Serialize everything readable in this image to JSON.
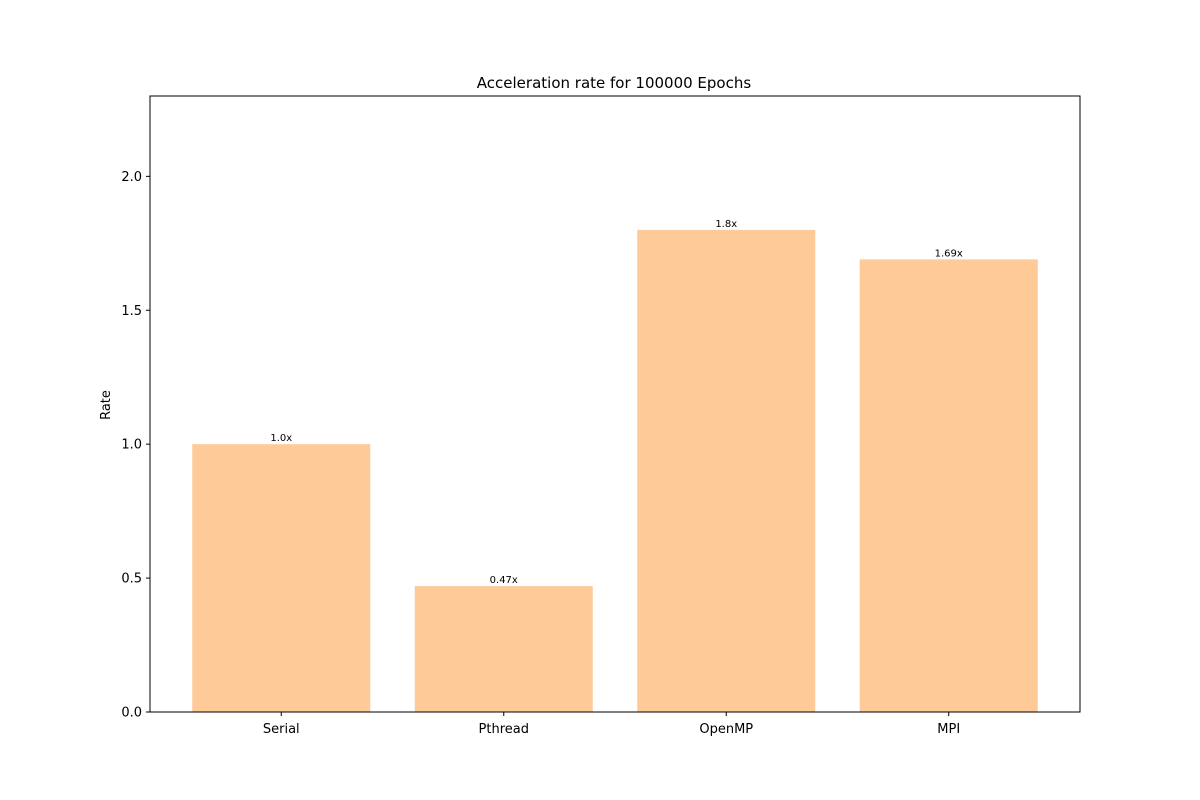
{
  "chart_data": {
    "type": "bar",
    "title": "Acceleration rate for 100000 Epochs",
    "xlabel": "",
    "ylabel": "Rate",
    "categories": [
      "Serial",
      "Pthread",
      "OpenMP",
      "MPI"
    ],
    "values": [
      1.0,
      0.47,
      1.8,
      1.69
    ],
    "data_labels": [
      "1.0x",
      "0.47x",
      "1.8x",
      "1.69x"
    ],
    "ylim": [
      0,
      2.3
    ],
    "yticks": [
      0.0,
      0.5,
      1.0,
      1.5,
      2.0
    ],
    "ytick_labels": [
      "0.0",
      "0.5",
      "1.0",
      "1.5",
      "2.0"
    ],
    "bar_color": "#fdca98",
    "grid": false,
    "legend": "none"
  }
}
